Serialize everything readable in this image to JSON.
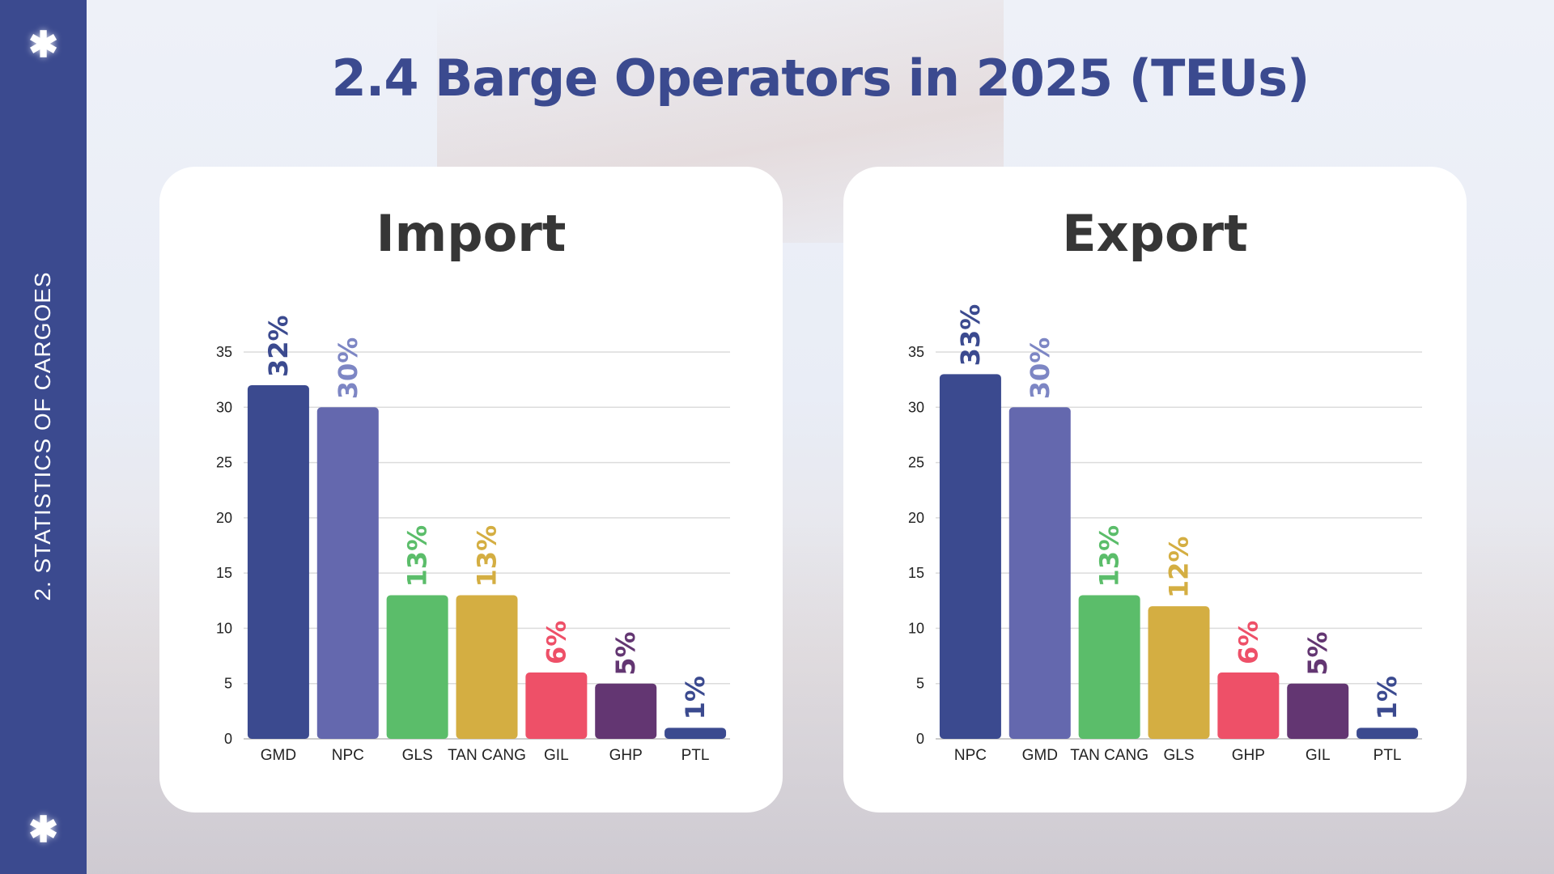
{
  "sidebar": {
    "section_label": "2. STATISTICS OF CARGOES",
    "icon": "asterisk-icon"
  },
  "header": {
    "title": "2.4 Barge Operators in 2025 (TEUs)"
  },
  "chart_data": [
    {
      "type": "bar",
      "title": "Import",
      "xlabel": "",
      "ylabel": "",
      "ylim": [
        0,
        35
      ],
      "yticks": [
        0,
        5,
        10,
        15,
        20,
        25,
        30,
        35
      ],
      "grid": true,
      "categories": [
        "GMD",
        "NPC",
        "GLS",
        "TAN CANG",
        "GIL",
        "GHP",
        "PTL"
      ],
      "values": [
        32,
        30,
        13,
        13,
        6,
        5,
        1
      ],
      "data_labels": [
        "32%",
        "30%",
        "13%",
        "13%",
        "6%",
        "5%",
        "1%"
      ],
      "colors": [
        "#3b4a8f",
        "#6468ae",
        "#5bbd6a",
        "#d4ae42",
        "#ee5068",
        "#633672",
        "#3b4a8f"
      ],
      "label_colors": [
        "#3b4a8f",
        "#7d86c4",
        "#5bbd6a",
        "#d4ae42",
        "#ee5068",
        "#633672",
        "#3b4a8f"
      ]
    },
    {
      "type": "bar",
      "title": "Export",
      "xlabel": "",
      "ylabel": "",
      "ylim": [
        0,
        35
      ],
      "yticks": [
        0,
        5,
        10,
        15,
        20,
        25,
        30,
        35
      ],
      "grid": true,
      "categories": [
        "NPC",
        "GMD",
        "TAN CANG",
        "GLS",
        "GHP",
        "GIL",
        "PTL"
      ],
      "values": [
        33,
        30,
        13,
        12,
        6,
        5,
        1
      ],
      "data_labels": [
        "33%",
        "30%",
        "13%",
        "12%",
        "6%",
        "5%",
        "1%"
      ],
      "colors": [
        "#3b4a8f",
        "#6468ae",
        "#5bbd6a",
        "#d4ae42",
        "#ee5068",
        "#633672",
        "#3b4a8f"
      ],
      "label_colors": [
        "#3b4a8f",
        "#7d86c4",
        "#5bbd6a",
        "#d4ae42",
        "#ee5068",
        "#633672",
        "#3b4a8f"
      ]
    }
  ]
}
